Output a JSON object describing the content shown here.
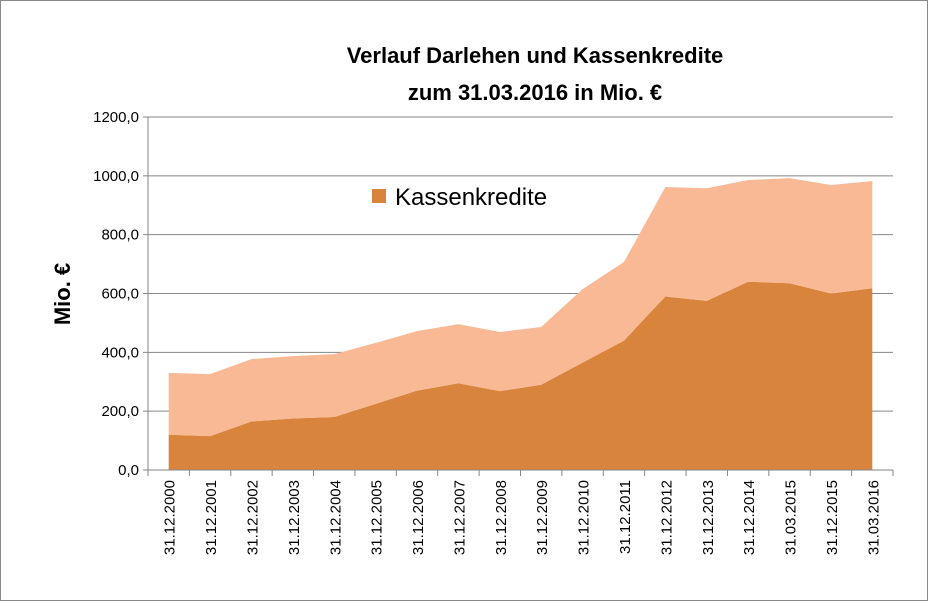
{
  "chart_data": {
    "type": "stacked_area",
    "title": [
      "Verlauf Darlehen und Kassenkredite",
      "zum 31.03.2016 in Mio. €"
    ],
    "y_label": "Mio. €",
    "categories": [
      "31.12.2000",
      "31.12.2001",
      "31.12.2002",
      "31.12.2003",
      "31.12.2004",
      "31.12.2005",
      "31.12.2006",
      "31.12.2007",
      "31.12.2008",
      "31.12.2009",
      "31.12.2010",
      "31.12.2011",
      "31.12.2012",
      "31.12.2013",
      "31.12.2014",
      "31.03.2015",
      "31.12.2015",
      "31.03.2016"
    ],
    "series": [
      {
        "name": "Kassenkredite",
        "color": "#d9843d",
        "values": [
          120,
          115,
          165,
          175,
          180,
          225,
          270,
          295,
          268,
          290,
          365,
          440,
          590,
          575,
          640,
          635,
          600,
          618
        ]
      },
      {
        "color": "#f8b994",
        "values": [
          210,
          211,
          212,
          212,
          214,
          207,
          202,
          201,
          201,
          196,
          250,
          267,
          372,
          383,
          346,
          357,
          369,
          364
        ]
      }
    ],
    "ylim": [
      0,
      1200
    ],
    "yticks": [
      {
        "value": 0,
        "label": "0,0"
      },
      {
        "value": 200,
        "label": "200,0"
      },
      {
        "value": 400,
        "label": "400,0"
      },
      {
        "value": 600,
        "label": "600,0"
      },
      {
        "value": 800,
        "label": "800,0"
      },
      {
        "value": 1000,
        "label": "1000,0"
      },
      {
        "value": 1200,
        "label": "1200,0"
      }
    ],
    "grid": true,
    "legend": "top-center"
  }
}
